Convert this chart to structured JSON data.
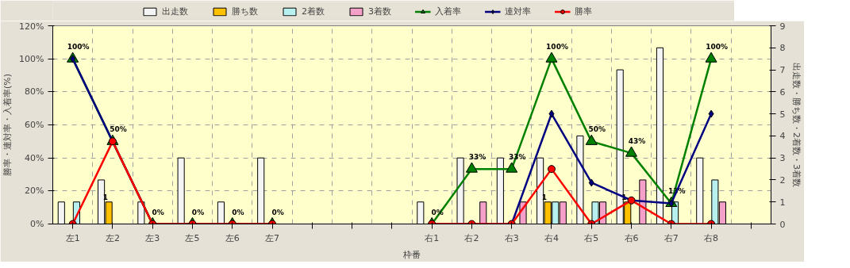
{
  "chart_data": {
    "type": "bar",
    "xlabel": "枠番",
    "ylabel": "勝率・連対率・入着率(%)",
    "y2label": "出走数・勝ち数・2着数・3着数",
    "categories": [
      "左1",
      "左2",
      "左3",
      "左5",
      "左6",
      "左7",
      null,
      null,
      null,
      "右1",
      "右2",
      "右3",
      "右4",
      "右5",
      "右6",
      "右7",
      "右8",
      null
    ],
    "ylim": [
      0,
      120
    ],
    "yticks": [
      {
        "value": 0,
        "label": "0%"
      },
      {
        "value": 20,
        "label": "20%"
      },
      {
        "value": 40,
        "label": "40%"
      },
      {
        "value": 60,
        "label": "60%"
      },
      {
        "value": 80,
        "label": "80%"
      },
      {
        "value": 100,
        "label": "100%"
      },
      {
        "value": 120,
        "label": "120%"
      }
    ],
    "y2lim": [
      0,
      9
    ],
    "y2ticks": [
      0,
      1,
      2,
      3,
      4,
      5,
      6,
      7,
      8,
      9
    ],
    "grid": true,
    "legend": "top",
    "series": [
      {
        "name": "出走数",
        "axis": "y2",
        "color": "#f4f4f4",
        "values": [
          1,
          2,
          1,
          3,
          1,
          3,
          null,
          null,
          null,
          1,
          3,
          3,
          3,
          4,
          7,
          8,
          3,
          null
        ]
      },
      {
        "name": "勝ち数",
        "axis": "y2",
        "color": "#ffc000",
        "values": [
          0,
          1,
          0,
          0,
          0,
          0,
          null,
          null,
          null,
          0,
          0,
          0,
          1,
          0,
          1,
          0,
          0,
          null
        ],
        "value_labels": [
          null,
          "1",
          null,
          null,
          null,
          null,
          null,
          null,
          null,
          null,
          null,
          null,
          "1",
          null,
          "1",
          null,
          null,
          null
        ]
      },
      {
        "name": "2着数",
        "axis": "y2",
        "color": "#b8f0f0",
        "values": [
          1,
          0,
          0,
          0,
          0,
          0,
          null,
          null,
          null,
          0,
          0,
          0,
          1,
          1,
          0,
          1,
          2,
          null
        ]
      },
      {
        "name": "3着数",
        "axis": "y2",
        "color": "#f4a0c8",
        "values": [
          0,
          0,
          0,
          0,
          0,
          0,
          null,
          null,
          null,
          0,
          1,
          1,
          1,
          1,
          2,
          0,
          1,
          null
        ]
      },
      {
        "name": "入着率",
        "type": "line",
        "color": "#008000",
        "marker": "triangle",
        "values": [
          100,
          50,
          0,
          0,
          0,
          0,
          null,
          null,
          null,
          0,
          33.3,
          33.3,
          100,
          50,
          42.9,
          12.5,
          100,
          null
        ],
        "value_labels": [
          "100%",
          "50%",
          "0%",
          "0%",
          "0%",
          "0%",
          null,
          null,
          null,
          "0%",
          "33%",
          "33%",
          "100%",
          "50%",
          "43%",
          "13%",
          "100%",
          null
        ]
      },
      {
        "name": "連対率",
        "type": "line",
        "color": "#000080",
        "marker": "diamond",
        "values": [
          100,
          50,
          0,
          0,
          0,
          0,
          null,
          null,
          null,
          0,
          0,
          0,
          66.7,
          25,
          14.3,
          12.5,
          66.7,
          null
        ]
      },
      {
        "name": "勝率",
        "type": "line",
        "color": "#ff0000",
        "marker": "circle",
        "values": [
          0,
          50,
          0,
          0,
          0,
          0,
          null,
          null,
          null,
          0,
          0,
          0,
          33.3,
          0,
          14.3,
          0,
          0,
          null
        ]
      }
    ]
  }
}
